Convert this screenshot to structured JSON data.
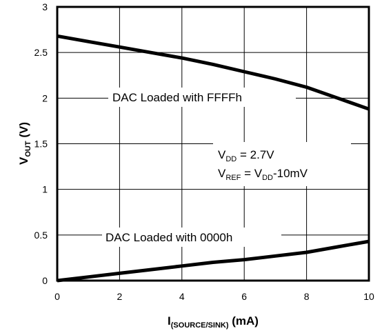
{
  "chart_data": {
    "type": "line",
    "xlabel": {
      "main": "I",
      "sub": "(SOURCE/SINK)",
      "suffix": " (mA)"
    },
    "ylabel": {
      "main": "V",
      "sub": "OUT",
      "suffix": " (V)"
    },
    "xlim": [
      0,
      10
    ],
    "ylim": [
      0,
      3
    ],
    "xticks": [
      0,
      2,
      4,
      6,
      8,
      10
    ],
    "yticks": [
      0,
      0.5,
      1,
      1.5,
      2,
      2.5,
      3
    ],
    "xtick_labels": [
      "0",
      "2",
      "4",
      "6",
      "8",
      "10"
    ],
    "ytick_labels": [
      "0",
      "0.5",
      "1",
      "1.5",
      "2",
      "2.5",
      "3"
    ],
    "grid": true,
    "series": [
      {
        "x": [
          0,
          1,
          2,
          3,
          4,
          5,
          6,
          7,
          8,
          9,
          10
        ],
        "y": [
          2.68,
          2.62,
          2.56,
          2.5,
          2.44,
          2.37,
          2.29,
          2.21,
          2.12,
          2.0,
          1.88
        ]
      },
      {
        "x": [
          0,
          1,
          2,
          3,
          4,
          5,
          6,
          7,
          8,
          9,
          10
        ],
        "y": [
          0.0,
          0.04,
          0.08,
          0.12,
          0.16,
          0.2,
          0.23,
          0.27,
          0.31,
          0.37,
          0.43
        ]
      }
    ],
    "annotations": {
      "upper_label": "DAC Loaded with FFFFh",
      "lower_label": "DAC Loaded with 0000h",
      "vdd": {
        "main": "V",
        "sub": "DD",
        "rest": " = 2.7V"
      },
      "vref": {
        "main": "V",
        "sub": "REF",
        "mid": " = V",
        "sub2": "DD",
        "rest": "-10mV"
      }
    }
  }
}
